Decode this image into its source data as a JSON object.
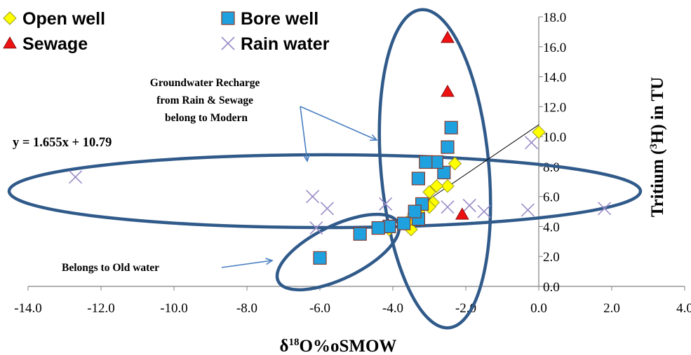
{
  "chart_data": {
    "type": "scatter",
    "xlabel_prefix": "δ",
    "xlabel_sup": "18",
    "xlabel_suffix": "O%oSMOW",
    "ylabel_prefix": "Tritium (",
    "ylabel_sup": "3",
    "ylabel_suffix": "H) in TU",
    "xlim": [
      -14,
      4
    ],
    "ylim": [
      0,
      18
    ],
    "xticks": [
      "-14.0",
      "-12.0",
      "-10.0",
      "-8.0",
      "-6.0",
      "-4.0",
      "-2.0",
      "0.0",
      "2.0",
      "4.0"
    ],
    "yticks": [
      "0.0",
      "2.0",
      "4.0",
      "6.0",
      "8.0",
      "10.0",
      "12.0",
      "14.0",
      "16.0",
      "18.0"
    ],
    "legend_position": "top-left",
    "series": [
      {
        "name": "Open well",
        "marker": "diamond",
        "color": "#ffff00",
        "points": [
          [
            0.0,
            10.3
          ],
          [
            -2.3,
            8.2
          ],
          [
            -2.5,
            6.7
          ],
          [
            -2.8,
            6.7
          ],
          [
            -3.0,
            6.3
          ],
          [
            -2.9,
            5.6
          ],
          [
            -3.0,
            5.3
          ],
          [
            -3.3,
            5.0
          ],
          [
            -3.5,
            3.8
          ],
          [
            -4.1,
            3.8
          ],
          [
            -3.6,
            4.3
          ]
        ]
      },
      {
        "name": "Bore well",
        "marker": "square",
        "color": "#1fa1e0",
        "points": [
          [
            -2.4,
            10.6
          ],
          [
            -2.5,
            9.3
          ],
          [
            -2.6,
            7.6
          ],
          [
            -2.8,
            8.3
          ],
          [
            -3.1,
            8.3
          ],
          [
            -3.3,
            7.2
          ],
          [
            -3.2,
            5.5
          ],
          [
            -3.3,
            4.5
          ],
          [
            -3.4,
            5.0
          ],
          [
            -3.7,
            4.2
          ],
          [
            -4.1,
            4.0
          ],
          [
            -4.4,
            3.9
          ],
          [
            -4.9,
            3.5
          ],
          [
            -6.0,
            1.9
          ]
        ]
      },
      {
        "name": "Sewage",
        "marker": "triangle",
        "color": "#ee1111",
        "points": [
          [
            -2.5,
            16.6
          ],
          [
            -2.5,
            13.0
          ],
          [
            -2.1,
            4.8
          ]
        ]
      },
      {
        "name": "Rain water",
        "marker": "x",
        "color": "#9b8cc8",
        "points": [
          [
            -12.7,
            7.3
          ],
          [
            -6.2,
            6.0
          ],
          [
            -5.8,
            5.2
          ],
          [
            -6.1,
            3.9
          ],
          [
            -4.2,
            5.5
          ],
          [
            -2.5,
            5.3
          ],
          [
            -1.9,
            5.4
          ],
          [
            -1.5,
            5.0
          ],
          [
            -0.3,
            5.1
          ],
          [
            -0.2,
            9.6
          ],
          [
            1.8,
            5.2
          ]
        ]
      }
    ],
    "trendline": {
      "slope": 1.655,
      "intercept": 10.79,
      "x_start": -3.6,
      "x_end": 0.0
    },
    "equation_label": "y = 1.655x + 10.79",
    "annotations": {
      "recharge": [
        "Groundwater Recharge",
        "from Rain & Sewage",
        "belong to Modern"
      ],
      "old": "Belongs to Old water"
    },
    "colors": {
      "ellipse_stroke": "#305a8a",
      "arrow": "#4a7fc0",
      "axis": "#808080"
    }
  }
}
